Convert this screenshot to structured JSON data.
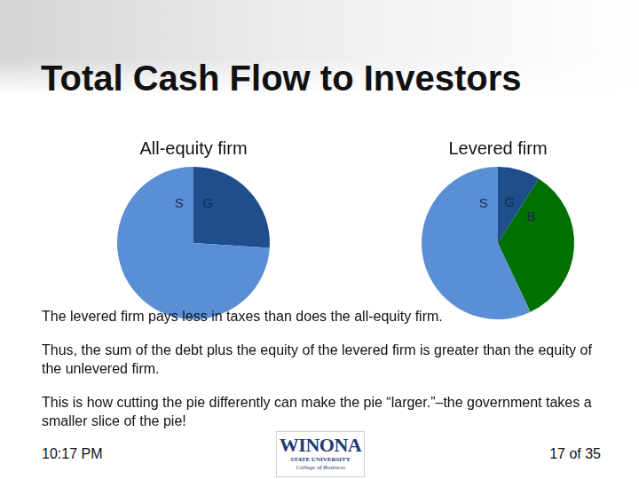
{
  "slide": {
    "title": "Total Cash Flow to Investors",
    "paragraphs": [
      "The levered firm pays less in taxes than does the all-equity firm.",
      "Thus, the sum of the debt plus the equity of the levered firm is greater than the equity of the unlevered firm.",
      "This is how cutting the pie differently can make the pie “larger.”–the government takes a smaller slice of the pie!"
    ],
    "footer": {
      "time": "10:17 PM",
      "page": "17 of 35",
      "logo": [
        "WINONA",
        "STATE UNIVERSITY",
        "College of Business"
      ]
    }
  },
  "chart_data": [
    {
      "type": "pie",
      "title": "All-equity firm",
      "categories": [
        "G",
        "S"
      ],
      "values": [
        26,
        74
      ],
      "colors": [
        "#1f4e8c",
        "#5a8fd6"
      ]
    },
    {
      "type": "pie",
      "title": "Levered firm",
      "categories": [
        "G",
        "B",
        "S"
      ],
      "values": [
        9,
        34,
        57
      ],
      "colors": [
        "#1f4e8c",
        "#007000",
        "#5a8fd6"
      ]
    }
  ]
}
